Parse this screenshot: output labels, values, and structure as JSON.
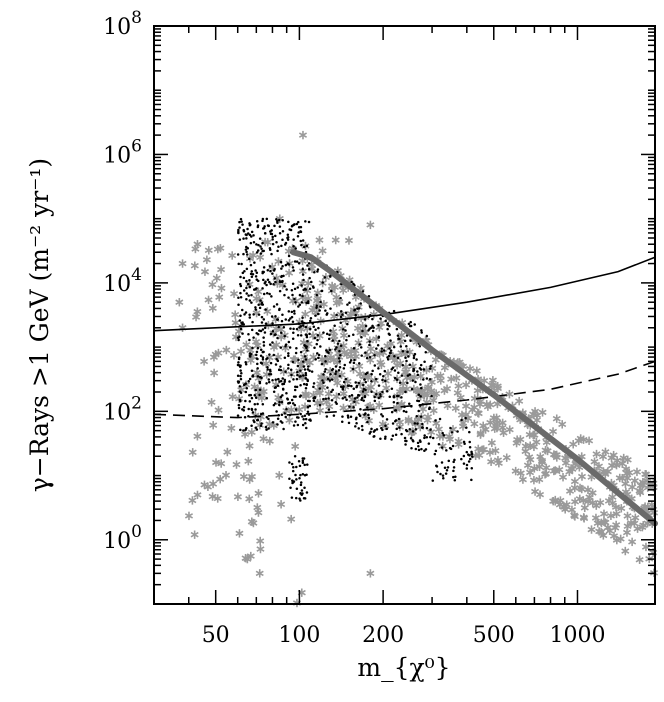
{
  "chart_data": {
    "type": "scatter",
    "title": "",
    "xlabel": "m_{χ⁰}",
    "ylabel": "γ−Rays >1 GeV (m⁻² yr⁻¹)",
    "xscale": "log",
    "yscale": "log",
    "xlim": [
      30,
      1900
    ],
    "ylim": [
      0.1,
      100000000
    ],
    "x_ticks": [
      50,
      100,
      200,
      500,
      1000
    ],
    "y_ticks": [
      1,
      100,
      10000,
      1000000,
      100000000
    ],
    "grid": false,
    "legend": "none",
    "colors": {
      "gray": "#9a9a9a",
      "dark_gray_curve": "#6a6a6a",
      "black": "#000000"
    },
    "series": [
      {
        "style": "gray-asterisk",
        "clouds": [
          {
            "x_range": [
              40,
              75
            ],
            "y_range": [
              1,
              40000
            ],
            "n": 70
          },
          {
            "x_range": [
              60,
              100
            ],
            "y_range": [
              0.5,
              2000
            ],
            "n": 40
          },
          {
            "x_range": [
              70,
              180
            ],
            "y_range": [
              100,
              50000
            ],
            "n": 90
          },
          {
            "x_range": [
              100,
              1900
            ],
            "band_upper": [
              [
                100,
                25000
              ],
              [
                200,
                4000
              ],
              [
                500,
                300
              ],
              [
                1000,
                50
              ],
              [
                1900,
                10
              ]
            ],
            "band_lower": [
              [
                100,
                150
              ],
              [
                200,
                60
              ],
              [
                500,
                15
              ],
              [
                1000,
                2
              ],
              [
                1900,
                0.3
              ]
            ],
            "n": 520
          }
        ],
        "points": [
          [
            103,
            2000000
          ],
          [
            85,
            100000
          ],
          [
            180,
            80000
          ],
          [
            43,
            40000
          ],
          [
            38,
            20000
          ],
          [
            37,
            5000
          ],
          [
            38,
            2000
          ],
          [
            43,
            5
          ],
          [
            42,
            1.2
          ],
          [
            65,
            0.5
          ],
          [
            72,
            0.3
          ],
          [
            98,
            0.08
          ],
          [
            102,
            0.15
          ],
          [
            180,
            0.3
          ],
          [
            1750,
            3
          ]
        ]
      },
      {
        "style": "black-dot",
        "clouds": [
          {
            "x_range": [
              60,
              110
            ],
            "y_range": [
              50,
              100000
            ],
            "n": 600
          },
          {
            "x_range": [
              110,
              300
            ],
            "band_upper": [
              [
                110,
                30000
              ],
              [
                300,
                1500
              ]
            ],
            "band_lower": [
              [
                110,
                80
              ],
              [
                300,
                20
              ]
            ],
            "n": 450
          },
          {
            "x_range": [
              300,
              420
            ],
            "y_range": [
              8,
              80
            ],
            "n": 60
          },
          {
            "x_range": [
              92,
              108
            ],
            "y_range": [
              4,
              20
            ],
            "n": 45
          }
        ]
      }
    ],
    "lines": [
      {
        "style": "solid",
        "color": "#000000",
        "x": [
          30,
          100,
          200,
          400,
          800,
          1400,
          1900
        ],
        "y": [
          1800,
          2300,
          3200,
          5000,
          8500,
          15000,
          25000
        ]
      },
      {
        "style": "dashed",
        "color": "#000000",
        "x": [
          30,
          60,
          100,
          200,
          400,
          800,
          1400,
          1900
        ],
        "y": [
          90,
          80,
          90,
          110,
          150,
          220,
          380,
          600
        ]
      },
      {
        "style": "thick",
        "color": "#6a6a6a",
        "x": [
          95,
          110,
          130,
          200,
          300,
          500,
          1000,
          1900
        ],
        "y": [
          30000,
          25000,
          15000,
          3500,
          900,
          180,
          18,
          1.8
        ]
      }
    ]
  }
}
